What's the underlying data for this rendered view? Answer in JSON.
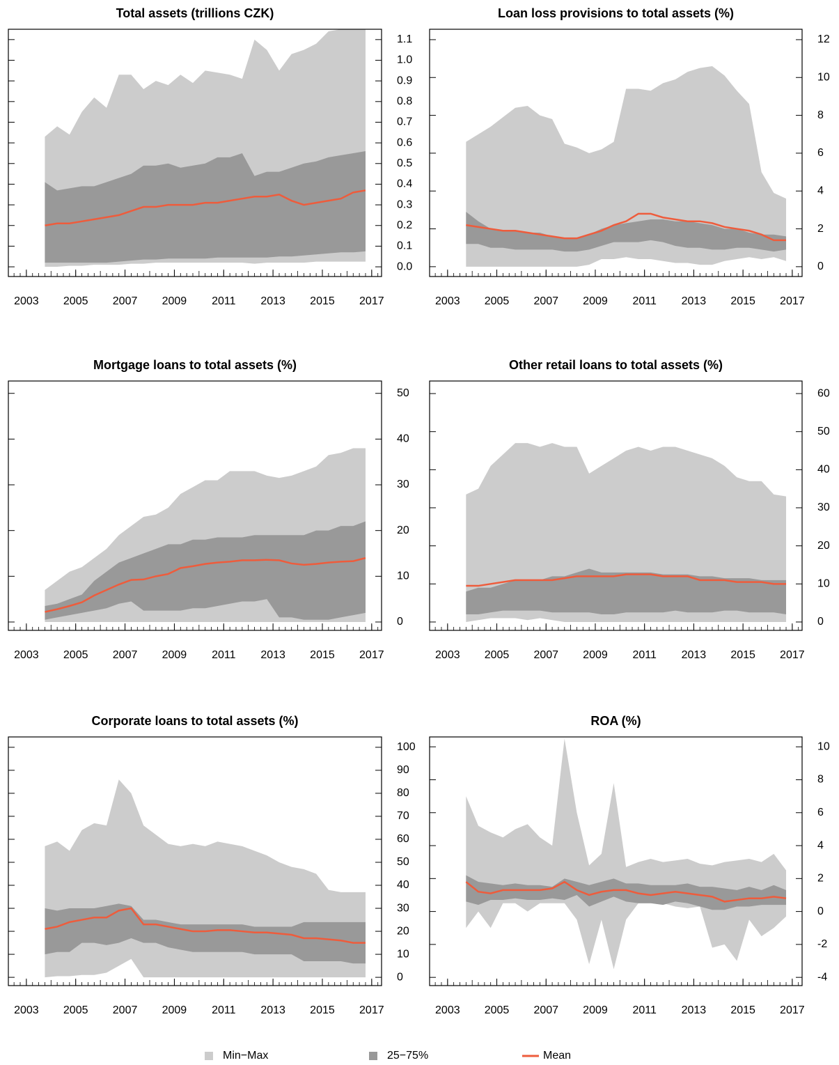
{
  "chart_data": [
    {
      "type": "band",
      "title": "Total assets (trillions CZK)",
      "x": [
        2003.75,
        2004.25,
        2004.75,
        2005.25,
        2005.75,
        2006.25,
        2006.75,
        2007.25,
        2007.75,
        2008.25,
        2008.75,
        2009.25,
        2009.75,
        2010.25,
        2010.75,
        2011.25,
        2011.75,
        2012.25,
        2012.75,
        2013.25,
        2013.75,
        2014.25,
        2014.75,
        2015.25,
        2015.75,
        2016.25,
        2016.75
      ],
      "max": [
        0.63,
        0.68,
        0.64,
        0.75,
        0.82,
        0.77,
        0.93,
        0.93,
        0.86,
        0.9,
        0.88,
        0.93,
        0.89,
        0.95,
        0.94,
        0.93,
        0.91,
        1.1,
        1.05,
        0.95,
        1.03,
        1.05,
        1.08,
        1.14,
        1.15,
        1.15,
        1.15
      ],
      "q75": [
        0.41,
        0.37,
        0.38,
        0.39,
        0.39,
        0.41,
        0.43,
        0.45,
        0.49,
        0.49,
        0.5,
        0.48,
        0.49,
        0.5,
        0.53,
        0.53,
        0.55,
        0.44,
        0.46,
        0.46,
        0.48,
        0.5,
        0.51,
        0.53,
        0.54,
        0.55,
        0.56
      ],
      "q25": [
        0.02,
        0.02,
        0.02,
        0.02,
        0.02,
        0.02,
        0.025,
        0.03,
        0.035,
        0.035,
        0.04,
        0.04,
        0.04,
        0.04,
        0.045,
        0.045,
        0.045,
        0.045,
        0.045,
        0.05,
        0.05,
        0.055,
        0.06,
        0.065,
        0.07,
        0.07,
        0.075
      ],
      "min": [
        0,
        0,
        0.005,
        0.005,
        0.01,
        0.01,
        0.01,
        0.015,
        0.015,
        0.02,
        0.02,
        0.02,
        0.02,
        0.02,
        0.02,
        0.02,
        0.02,
        0.015,
        0.02,
        0.02,
        0.02,
        0.02,
        0.025,
        0.025,
        0.025,
        0.025,
        0.025
      ],
      "mean": [
        0.2,
        0.21,
        0.21,
        0.22,
        0.23,
        0.24,
        0.25,
        0.27,
        0.29,
        0.29,
        0.3,
        0.3,
        0.3,
        0.31,
        0.31,
        0.32,
        0.33,
        0.34,
        0.34,
        0.35,
        0.32,
        0.3,
        0.31,
        0.32,
        0.33,
        0.36,
        0.37
      ],
      "xlim": [
        2002.27,
        2017.4
      ],
      "xticks": [
        2003,
        2005,
        2007,
        2009,
        2011,
        2013,
        2015,
        2017
      ],
      "ylim": [
        -0.047,
        1.15
      ],
      "yticks": [
        {
          "value": 0,
          "label": "0.0"
        },
        0.1,
        0.2,
        0.3,
        0.4,
        0.5,
        0.6,
        0.7,
        0.8,
        0.9,
        {
          "value": 1,
          "label": "1.0"
        },
        1.1
      ]
    },
    {
      "type": "band",
      "title": "Loan loss provisions to total assets (%)",
      "x": [
        2003.75,
        2004.25,
        2004.75,
        2005.25,
        2005.75,
        2006.25,
        2006.75,
        2007.25,
        2007.75,
        2008.25,
        2008.75,
        2009.25,
        2009.75,
        2010.25,
        2010.75,
        2011.25,
        2011.75,
        2012.25,
        2012.75,
        2013.25,
        2013.75,
        2014.25,
        2014.75,
        2015.25,
        2015.75,
        2016.25,
        2016.75
      ],
      "max": [
        6.6,
        7,
        7.4,
        7.9,
        8.4,
        8.5,
        8,
        7.8,
        6.5,
        6.3,
        6,
        6.2,
        6.6,
        9.4,
        9.4,
        9.3,
        9.7,
        9.9,
        10.3,
        10.5,
        10.6,
        10.1,
        9.3,
        8.6,
        5,
        3.9,
        3.6
      ],
      "q75": [
        2.9,
        2.4,
        2,
        1.9,
        1.9,
        1.8,
        1.8,
        1.6,
        1.5,
        1.5,
        1.7,
        2,
        2.2,
        2.3,
        2.4,
        2.5,
        2.5,
        2.4,
        2.4,
        2.3,
        2.2,
        2,
        2,
        1.8,
        1.7,
        1.7,
        1.6
      ],
      "q25": [
        1.2,
        1.2,
        1,
        1,
        0.9,
        0.9,
        0.9,
        0.9,
        0.8,
        0.8,
        0.9,
        1.1,
        1.3,
        1.3,
        1.3,
        1.4,
        1.3,
        1.1,
        1,
        1,
        0.9,
        0.9,
        1,
        1,
        0.9,
        0.8,
        0.9
      ],
      "min": [
        0,
        0,
        0,
        0,
        0,
        0,
        0,
        0,
        0,
        0,
        0.1,
        0.4,
        0.4,
        0.5,
        0.4,
        0.4,
        0.3,
        0.2,
        0.2,
        0.1,
        0.1,
        0.3,
        0.4,
        0.5,
        0.4,
        0.5,
        0.3
      ],
      "mean": [
        2.2,
        2.1,
        2,
        1.9,
        1.9,
        1.8,
        1.7,
        1.6,
        1.5,
        1.5,
        1.7,
        1.9,
        2.2,
        2.4,
        2.8,
        2.8,
        2.6,
        2.5,
        2.4,
        2.4,
        2.3,
        2.1,
        2,
        1.9,
        1.7,
        1.4,
        1.4
      ],
      "xlim": [
        2002.27,
        2017.4
      ],
      "xticks": [
        2003,
        2005,
        2007,
        2009,
        2011,
        2013,
        2015,
        2017
      ],
      "ylim": [
        -0.52,
        12.55
      ],
      "yticks": [
        0,
        2,
        4,
        6,
        8,
        10,
        12
      ]
    },
    {
      "type": "band",
      "title": "Mortgage loans to total assets (%)",
      "x": [
        2003.75,
        2004.25,
        2004.75,
        2005.25,
        2005.75,
        2006.25,
        2006.75,
        2007.25,
        2007.75,
        2008.25,
        2008.75,
        2009.25,
        2009.75,
        2010.25,
        2010.75,
        2011.25,
        2011.75,
        2012.25,
        2012.75,
        2013.25,
        2013.75,
        2014.25,
        2014.75,
        2015.25,
        2015.75,
        2016.25,
        2016.75
      ],
      "max": [
        7,
        9,
        11,
        12,
        14,
        16,
        19,
        21,
        23,
        23.5,
        25,
        28,
        29.5,
        31,
        31,
        33,
        33,
        33,
        32,
        31.5,
        32,
        33,
        34,
        36.5,
        37,
        38,
        38
      ],
      "q75": [
        3.5,
        4,
        5,
        6,
        9,
        11,
        13,
        14,
        15,
        16,
        17,
        17,
        18,
        18,
        18.5,
        18.5,
        18.5,
        19,
        19,
        19,
        19,
        19,
        20,
        20,
        21,
        21,
        22
      ],
      "q25": [
        0.5,
        1,
        1.5,
        2,
        2.5,
        3,
        4,
        4.5,
        2.5,
        2.5,
        2.5,
        2.5,
        3,
        3,
        3.5,
        4,
        4.5,
        4.5,
        5,
        1,
        1,
        0.5,
        0.5,
        0.5,
        1,
        1.5,
        2
      ],
      "min": [
        0,
        0,
        0,
        0,
        0,
        0,
        0,
        0,
        0,
        0,
        0,
        0,
        0,
        0,
        0,
        0,
        0,
        0,
        0,
        0,
        0,
        0,
        0,
        0,
        0,
        0,
        0
      ],
      "mean": [
        2.2,
        2.8,
        3.5,
        4.3,
        5.8,
        7,
        8.2,
        9.2,
        9.3,
        10,
        10.5,
        11.8,
        12.2,
        12.7,
        13,
        13.2,
        13.5,
        13.5,
        13.6,
        13.5,
        12.8,
        12.5,
        12.7,
        13,
        13.2,
        13.3,
        14
      ],
      "xlim": [
        2002.27,
        2017.4
      ],
      "xticks": [
        2003,
        2005,
        2007,
        2009,
        2011,
        2013,
        2015,
        2017
      ],
      "ylim": [
        -1.83,
        52.7
      ],
      "yticks": [
        0,
        10,
        20,
        30,
        40,
        50
      ]
    },
    {
      "type": "band",
      "title": "Other retail loans to total assets (%)",
      "x": [
        2003.75,
        2004.25,
        2004.75,
        2005.25,
        2005.75,
        2006.25,
        2006.75,
        2007.25,
        2007.75,
        2008.25,
        2008.75,
        2009.25,
        2009.75,
        2010.25,
        2010.75,
        2011.25,
        2011.75,
        2012.25,
        2012.75,
        2013.25,
        2013.75,
        2014.25,
        2014.75,
        2015.25,
        2015.75,
        2016.25,
        2016.75
      ],
      "max": [
        33.5,
        35,
        41,
        44,
        47,
        47,
        46,
        47,
        46,
        46,
        39,
        41,
        43,
        45,
        46,
        45,
        46,
        46,
        45,
        44,
        43,
        41,
        38,
        37,
        37,
        33.5,
        33
      ],
      "q75": [
        8,
        9,
        9,
        10,
        11,
        11,
        11,
        12,
        12,
        13,
        14,
        13,
        13,
        13,
        13,
        13,
        12.5,
        12.5,
        12.5,
        12,
        12,
        11.5,
        11.5,
        11.5,
        11,
        11,
        11
      ],
      "q25": [
        2,
        2,
        2.5,
        3,
        3,
        3,
        3,
        2.5,
        2.5,
        2.5,
        2.5,
        2,
        2,
        2.5,
        2.5,
        2.5,
        2.5,
        3,
        2.5,
        2.5,
        2.5,
        3,
        3,
        2.5,
        2.5,
        2.5,
        2
      ],
      "min": [
        0,
        0.5,
        1,
        1,
        1,
        0.5,
        1,
        0.5,
        0,
        0,
        0,
        0,
        0,
        0,
        0,
        0,
        0,
        0,
        0,
        0,
        0,
        0,
        0,
        0,
        0,
        0,
        0
      ],
      "mean": [
        9.5,
        9.5,
        10,
        10.5,
        11,
        11,
        11,
        11,
        11.5,
        12,
        12,
        12,
        12,
        12.5,
        12.5,
        12.5,
        12,
        12,
        12,
        11,
        11,
        11,
        10.5,
        10.5,
        10.5,
        10,
        10
      ],
      "xlim": [
        2002.27,
        2017.4
      ],
      "xticks": [
        2003,
        2005,
        2007,
        2009,
        2011,
        2013,
        2015,
        2017
      ],
      "ylim": [
        -2.2,
        63.3
      ],
      "yticks": [
        0,
        10,
        20,
        30,
        40,
        50,
        60
      ]
    },
    {
      "type": "band",
      "title": "Corporate loans to total assets (%)",
      "x": [
        2003.75,
        2004.25,
        2004.75,
        2005.25,
        2005.75,
        2006.25,
        2006.75,
        2007.25,
        2007.75,
        2008.25,
        2008.75,
        2009.25,
        2009.75,
        2010.25,
        2010.75,
        2011.25,
        2011.75,
        2012.25,
        2012.75,
        2013.25,
        2013.75,
        2014.25,
        2014.75,
        2015.25,
        2015.75,
        2016.25,
        2016.75
      ],
      "max": [
        57,
        59,
        55,
        64,
        67,
        66,
        86,
        80,
        66,
        62,
        58,
        57,
        58,
        57,
        59,
        58,
        57,
        55,
        53,
        50,
        48,
        47,
        45,
        38,
        37,
        37,
        37
      ],
      "q75": [
        30,
        29,
        30,
        30,
        30,
        31,
        32,
        31,
        25,
        25,
        24,
        23,
        23,
        23,
        23,
        23,
        23,
        22,
        22,
        22,
        22,
        24,
        24,
        24,
        24,
        24,
        24
      ],
      "q25": [
        10,
        11,
        11,
        15,
        15,
        14,
        15,
        17,
        15,
        15,
        13,
        12,
        11,
        11,
        11,
        11,
        11,
        10,
        10,
        10,
        10,
        7,
        7,
        7,
        7,
        6,
        6
      ],
      "min": [
        0,
        0.5,
        0.5,
        1,
        1,
        2,
        5,
        8,
        0,
        0,
        0,
        0,
        0,
        0,
        0,
        0,
        0,
        0,
        0,
        0,
        0,
        0,
        0,
        0,
        0,
        0,
        0
      ],
      "mean": [
        21,
        22,
        24,
        25,
        26,
        26,
        29,
        30,
        23,
        23,
        22,
        21,
        20,
        20,
        20.5,
        20.5,
        20,
        19.5,
        19.5,
        19,
        18.5,
        17,
        17,
        16.5,
        16,
        15,
        15
      ],
      "xlim": [
        2002.27,
        2017.4
      ],
      "xticks": [
        2003,
        2005,
        2007,
        2009,
        2011,
        2013,
        2015,
        2017
      ],
      "ylim": [
        -3.6,
        104.5
      ],
      "yticks": [
        0,
        10,
        20,
        30,
        40,
        50,
        60,
        70,
        80,
        90,
        100
      ]
    },
    {
      "type": "band",
      "title": "ROA (%)",
      "x": [
        2003.75,
        2004.25,
        2004.75,
        2005.25,
        2005.75,
        2006.25,
        2006.75,
        2007.25,
        2007.75,
        2008.25,
        2008.75,
        2009.25,
        2009.75,
        2010.25,
        2010.75,
        2011.25,
        2011.75,
        2012.25,
        2012.75,
        2013.25,
        2013.75,
        2014.25,
        2014.75,
        2015.25,
        2015.75,
        2016.25,
        2016.75
      ],
      "max": [
        7,
        5.2,
        4.8,
        4.5,
        5,
        5.3,
        4.5,
        4,
        10.5,
        6,
        2.8,
        3.5,
        7.8,
        2.7,
        3,
        3.2,
        3,
        3.1,
        3.2,
        2.9,
        2.8,
        3,
        3.1,
        3.2,
        3,
        3.5,
        2.5
      ],
      "q75": [
        2.2,
        1.8,
        1.7,
        1.6,
        1.7,
        1.6,
        1.6,
        1.5,
        2,
        1.8,
        1.6,
        1.8,
        2,
        1.7,
        1.7,
        1.6,
        1.6,
        1.6,
        1.7,
        1.5,
        1.5,
        1.4,
        1.3,
        1.5,
        1.3,
        1.6,
        1.3
      ],
      "q25": [
        0.6,
        0.4,
        0.7,
        0.7,
        0.8,
        0.7,
        0.7,
        0.8,
        0.7,
        1,
        0.3,
        0.6,
        0.9,
        0.6,
        0.5,
        0.5,
        0.4,
        0.6,
        0.5,
        0.3,
        0.1,
        0.1,
        0.3,
        0.3,
        0.4,
        0.4,
        0.4
      ],
      "min": [
        -1,
        0,
        -1,
        0.5,
        0.5,
        0,
        0.5,
        0.5,
        0.5,
        -0.5,
        -3.2,
        -0.5,
        -3.5,
        -0.5,
        0.5,
        0.5,
        0.5,
        0.3,
        0.2,
        0.3,
        -2.2,
        -2,
        -3,
        -0.5,
        -1.5,
        -1,
        -0.3
      ],
      "mean": [
        1.8,
        1.2,
        1.1,
        1.3,
        1.3,
        1.3,
        1.3,
        1.4,
        1.8,
        1.3,
        1,
        1.2,
        1.3,
        1.3,
        1.1,
        1,
        1.1,
        1.2,
        1.1,
        1,
        0.9,
        0.6,
        0.7,
        0.8,
        0.8,
        0.9,
        0.8
      ],
      "xlim": [
        2002.27,
        2017.4
      ],
      "xticks": [
        2003,
        2005,
        2007,
        2009,
        2011,
        2013,
        2015,
        2017
      ],
      "ylim": [
        -4.5,
        10.6
      ],
      "yticks": [
        -4,
        -2,
        0,
        2,
        4,
        6,
        8,
        10
      ]
    }
  ],
  "legend": {
    "entries": [
      {
        "name": "Min−Max",
        "color": "#cccccc"
      },
      {
        "name": "25−75%",
        "color": "#999999"
      },
      {
        "name": "Mean",
        "color": "#ee5c3c"
      }
    ]
  }
}
